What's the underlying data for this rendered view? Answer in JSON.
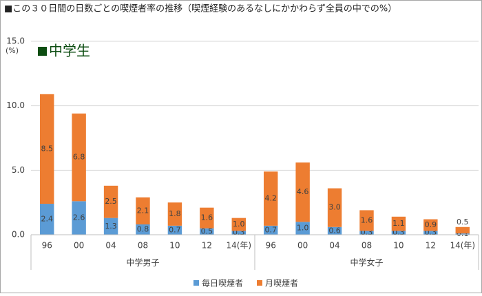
{
  "chart_data": {
    "type": "stacked-bar",
    "title": "■この３０日間の日数ごとの喫煙者率の推移（喫煙経験のあるなしにかかわらず全員の中での%）",
    "annotation": "中学生",
    "y_unit": "(%)",
    "categories": [
      "96",
      "00",
      "04",
      "08",
      "10",
      "12",
      "14(年)",
      "96",
      "00",
      "04",
      "08",
      "10",
      "12",
      "14(年)"
    ],
    "group_labels": [
      "中学男子",
      "中学女子"
    ],
    "series": [
      {
        "name": "毎日喫煙者",
        "color": "#5b9bd5",
        "values": [
          2.4,
          2.6,
          1.3,
          0.8,
          0.7,
          0.5,
          0.3,
          0.7,
          1.0,
          0.6,
          0.3,
          0.3,
          0.3,
          0.1
        ],
        "value_labels": [
          "2.4",
          "2.6",
          "1.3",
          "0.8",
          "0.7",
          "0.5",
          "0.3",
          "0.7",
          "1.0",
          "0.6",
          "0.3",
          "0.3",
          "0.3",
          "0.1"
        ]
      },
      {
        "name": "月喫煙者",
        "color": "#ed7d31",
        "values": [
          8.5,
          6.8,
          2.5,
          2.1,
          1.8,
          1.6,
          1.0,
          4.2,
          4.6,
          3.0,
          1.6,
          1.1,
          0.9,
          0.5
        ],
        "value_labels": [
          "8.5",
          "6.8",
          "2.5",
          "2.1",
          "1.8",
          "1.6",
          "1.0",
          "4.2",
          "4.6",
          "3.0",
          "1.6",
          "1.1",
          "0.9",
          "0.5"
        ]
      }
    ],
    "ylim": [
      0,
      15
    ],
    "yticks": [
      {
        "value": 0,
        "label": "0.0"
      },
      {
        "value": 5,
        "label": "5.0"
      },
      {
        "value": 10,
        "label": "10.0"
      },
      {
        "value": 15,
        "label": "15.0"
      }
    ],
    "grid": true
  }
}
